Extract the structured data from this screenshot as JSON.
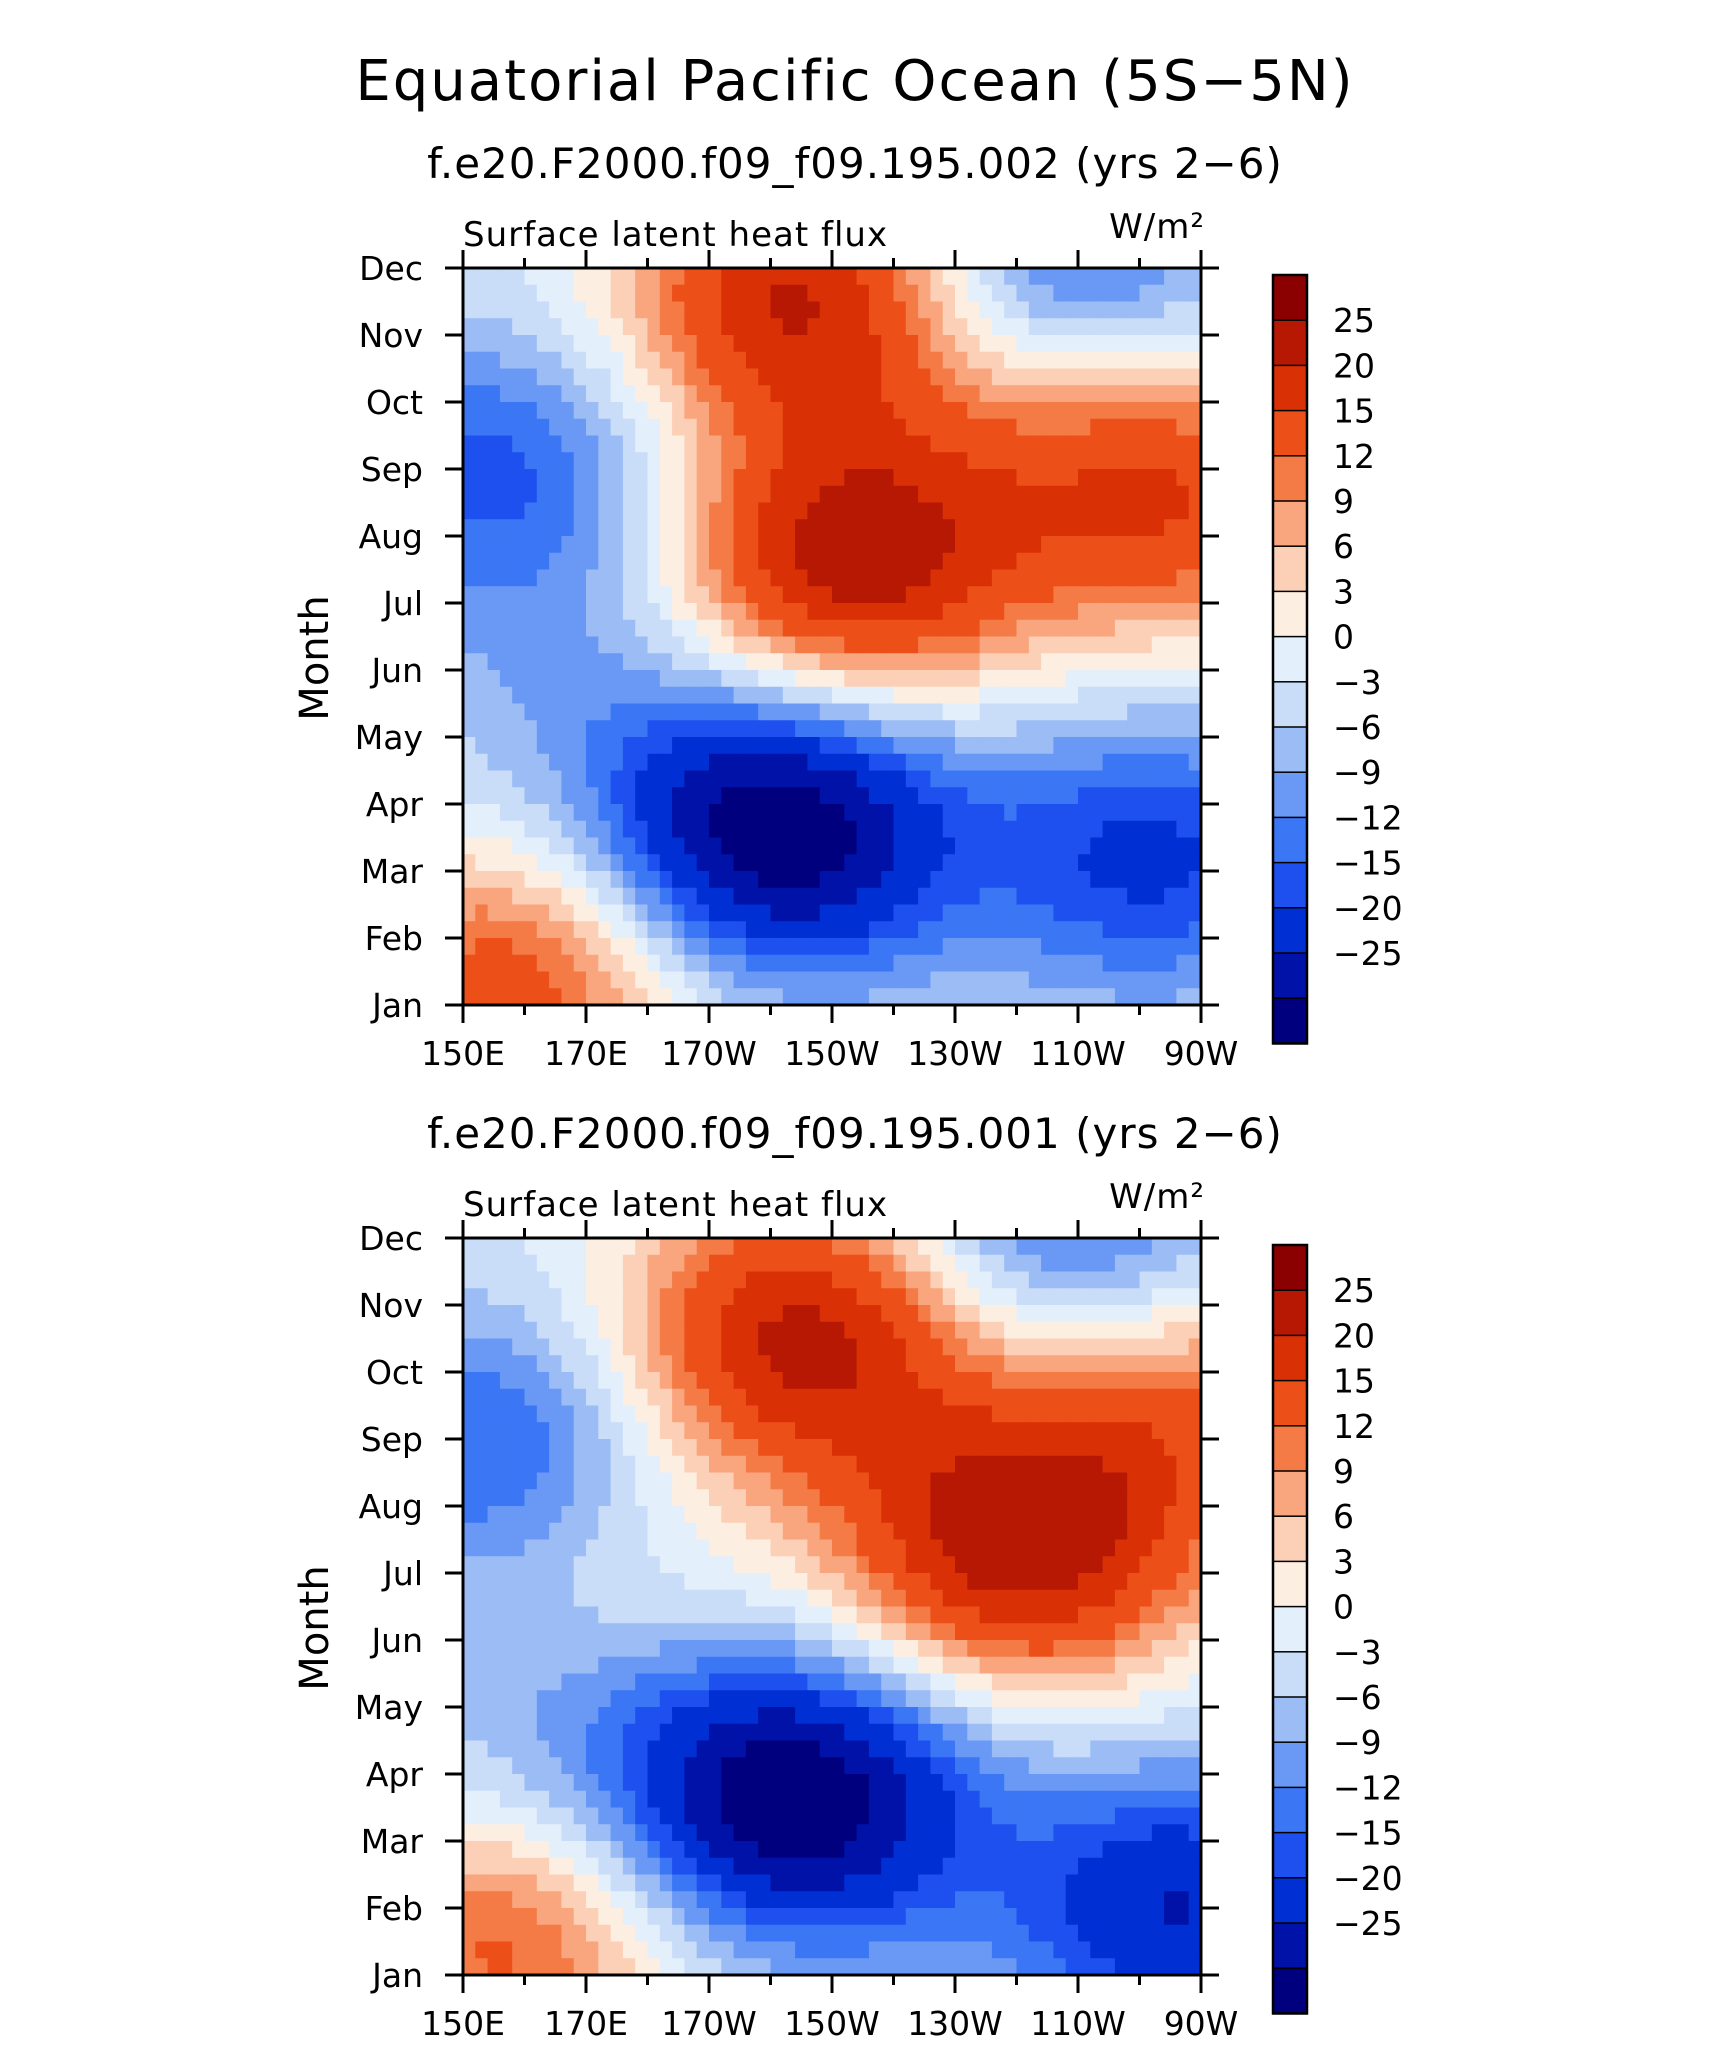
{
  "figure": {
    "title": "Equatorial Pacific Ocean (5S−5N)"
  },
  "chart_data": [
    {
      "type": "heatmap",
      "title": "f.e20.F2000.f09_f09.195.002 (yrs 2−6)",
      "left_label": "Surface latent heat flux",
      "right_label": "W/m²",
      "ylabel": "Month",
      "x_ticks": [
        "150E",
        "170E",
        "170W",
        "150W",
        "130W",
        "110W",
        "90W"
      ],
      "y_ticks": [
        "Jan",
        "Feb",
        "Mar",
        "Apr",
        "May",
        "Jun",
        "Jul",
        "Aug",
        "Sep",
        "Oct",
        "Nov",
        "Dec"
      ],
      "xlim": [
        150,
        270
      ],
      "ylim": [
        1,
        12
      ],
      "anomaly_centers": [
        {
          "lon": 201,
          "month": 3.6,
          "value": -30
        },
        {
          "lon": 213,
          "month": 7.6,
          "value": 28
        },
        {
          "lon": 205,
          "month": 11.6,
          "value": 26
        },
        {
          "lon": 158,
          "month": 1.3,
          "value": 18
        },
        {
          "lon": 156,
          "month": 9.0,
          "value": -13
        },
        {
          "lon": 262,
          "month": 3.2,
          "value": -16
        },
        {
          "lon": 246,
          "month": 12.0,
          "value": -14
        },
        {
          "lon": 266,
          "month": 8.5,
          "value": 18
        },
        {
          "lon": 168,
          "month": 6.0,
          "value": -5
        },
        {
          "lon": 245,
          "month": 9.8,
          "value": 6
        }
      ]
    },
    {
      "type": "heatmap",
      "title": "f.e20.F2000.f09_f09.195.001 (yrs 2−6)",
      "left_label": "Surface latent heat flux",
      "right_label": "W/m²",
      "ylabel": "Month",
      "x_ticks": [
        "150E",
        "170E",
        "170W",
        "150W",
        "130W",
        "110W",
        "90W"
      ],
      "y_ticks": [
        "Jan",
        "Feb",
        "Mar",
        "Apr",
        "May",
        "Jun",
        "Jul",
        "Aug",
        "Sep",
        "Oct",
        "Nov",
        "Dec"
      ],
      "xlim": [
        150,
        270
      ],
      "ylim": [
        1,
        12
      ],
      "anomaly_centers": [
        {
          "lon": 204,
          "month": 3.6,
          "value": -30
        },
        {
          "lon": 240,
          "month": 7.4,
          "value": 28
        },
        {
          "lon": 205,
          "month": 10.5,
          "value": 27
        },
        {
          "lon": 157,
          "month": 1.4,
          "value": 16
        },
        {
          "lon": 155,
          "month": 8.8,
          "value": -14
        },
        {
          "lon": 266,
          "month": 2.0,
          "value": -20
        },
        {
          "lon": 248,
          "month": 12.0,
          "value": -13
        },
        {
          "lon": 266,
          "month": 9.5,
          "value": 14
        },
        {
          "lon": 170,
          "month": 7.0,
          "value": 5
        },
        {
          "lon": 165,
          "month": 5.0,
          "value": -6
        }
      ]
    }
  ],
  "colorbar": {
    "labels": [
      "25",
      "20",
      "15",
      "12",
      "9",
      "6",
      "3",
      "0",
      "−3",
      "−6",
      "−9",
      "−12",
      "−15",
      "−20",
      "−25"
    ],
    "levels": [
      -25,
      -20,
      -15,
      -12,
      -9,
      -6,
      -3,
      0,
      3,
      6,
      9,
      12,
      15,
      20,
      25
    ],
    "colors": [
      "#00007f",
      "#0012a8",
      "#002fd4",
      "#1e50f0",
      "#3b76f5",
      "#6a98f5",
      "#9bbcf5",
      "#c9dcf8",
      "#e4effc",
      "#fdeee2",
      "#fcd0b6",
      "#f9a57d",
      "#f47a46",
      "#ec4f18",
      "#da3006",
      "#b71804",
      "#8b0000"
    ]
  }
}
